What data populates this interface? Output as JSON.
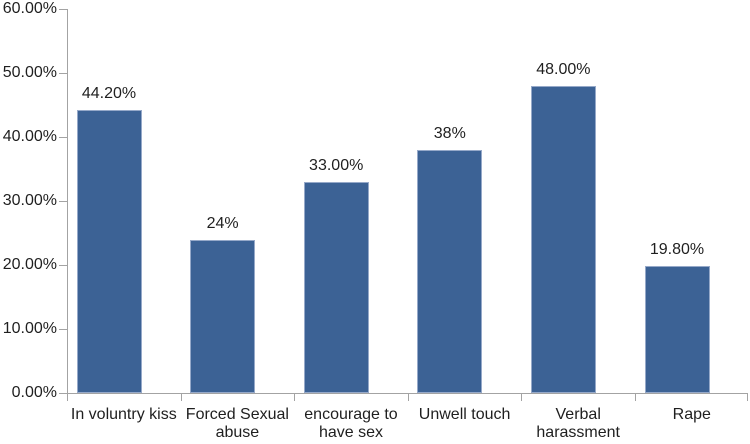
{
  "chart_data": {
    "type": "bar",
    "title": "",
    "xlabel": "",
    "ylabel": "",
    "categories": [
      "In voluntry kiss",
      "Forced Sexual abuse",
      "encourage to have sex",
      "Unwell touch",
      "Verbal harassment",
      "Rape"
    ],
    "category_label_lines": [
      [
        "In voluntry kiss"
      ],
      [
        "Forced Sexual",
        "abuse"
      ],
      [
        "encourage to",
        "have sex"
      ],
      [
        "Unwell touch"
      ],
      [
        "Verbal",
        "harassment"
      ],
      [
        "Rape"
      ]
    ],
    "values": [
      44.2,
      24,
      33,
      38,
      48,
      19.8
    ],
    "data_labels": [
      "44.20%",
      "24%",
      "33.00%",
      "38%",
      "48.00%",
      "19.80%"
    ],
    "y_axis": {
      "min": 0,
      "max": 60,
      "tick_step": 10,
      "tick_labels": [
        "0.00%",
        "10.00%",
        "20.00%",
        "30.00%",
        "40.00%",
        "50.00%",
        "60.00%"
      ]
    },
    "grid": false,
    "legend": false,
    "colors": {
      "bar_fill": "#3c6295",
      "bar_edge": "#96a9c9",
      "axis": "#a3a3a3",
      "text": "#1f1f1f",
      "background": "#ffffff"
    }
  }
}
